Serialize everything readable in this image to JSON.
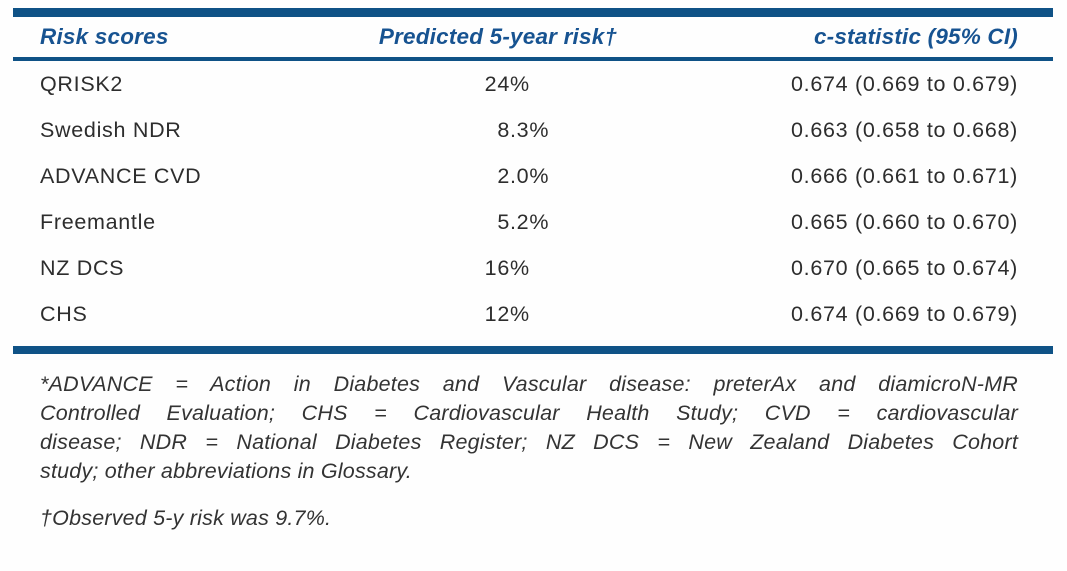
{
  "table": {
    "columns": [
      {
        "label": "Risk scores"
      },
      {
        "label": "Predicted 5-year risk†"
      },
      {
        "label": "c-statistic (95% CI)"
      }
    ],
    "rows": [
      {
        "score": "QRISK2",
        "predicted_risk": "24%",
        "c_statistic": "0.674 (0.669 to 0.679)"
      },
      {
        "score": "Swedish NDR",
        "predicted_risk": "8.3%",
        "c_statistic": "0.663 (0.658 to 0.668)"
      },
      {
        "score": "ADVANCE CVD",
        "predicted_risk": "2.0%",
        "c_statistic": "0.666 (0.661 to 0.671)"
      },
      {
        "score": "Freemantle",
        "predicted_risk": "5.2%",
        "c_statistic": "0.665 (0.660 to 0.670)"
      },
      {
        "score": "NZ DCS",
        "predicted_risk": "16%",
        "c_statistic": "0.670 (0.665 to 0.674)"
      },
      {
        "score": "CHS",
        "predicted_risk": "12%",
        "c_statistic": "0.674 (0.669 to 0.679)"
      }
    ]
  },
  "footnotes": {
    "abbrev_lines": [
      "*ADVANCE = Action in Diabetes and Vascular disease: preterAx and diamicroN-MR",
      "Controlled Evaluation; CHS = Cardiovascular Health Study; CVD = cardiovascular",
      "disease; NDR = National Diabetes Register; NZ DCS = New Zealand Diabetes Cohort",
      "study; other abbreviations in Glossary."
    ],
    "observed": "†Observed 5-y risk was 9.7%."
  },
  "colors": {
    "accent_blue": "#0f5286",
    "header_text_blue": "#175391",
    "body_text": "#2d2d2d"
  }
}
